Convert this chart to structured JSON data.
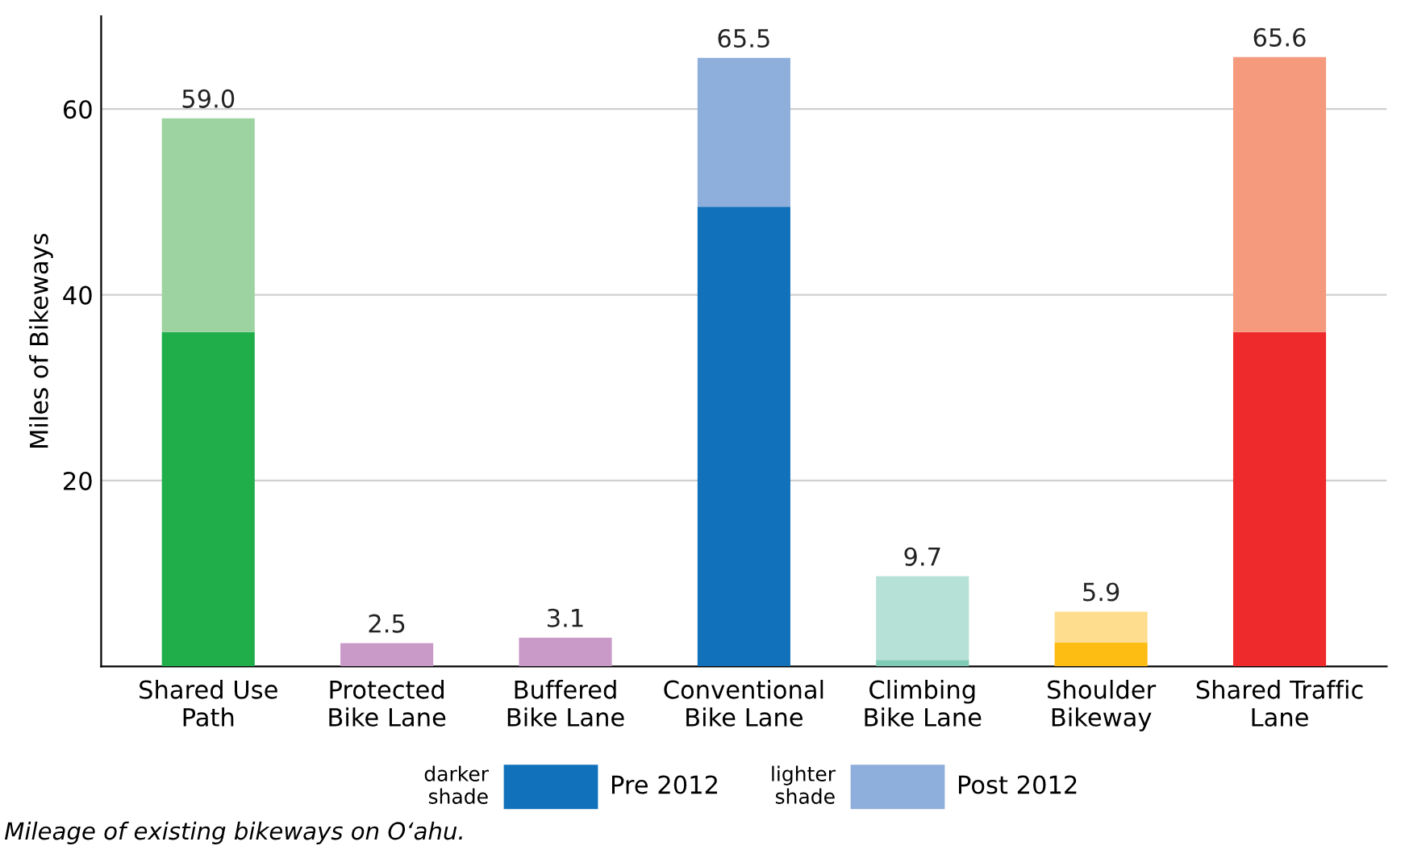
{
  "chart_data": {
    "type": "bar",
    "stacked": true,
    "ylabel": "Miles of Bikeways",
    "categories": [
      "Shared Use\nPath",
      "Protected\nBike Lane",
      "Buffered\nBike Lane",
      "Conventional\nBike Lane",
      "Climbing\nBike Lane",
      "Shoulder\nBikeway",
      "Shared Traffic\nLane"
    ],
    "series": [
      {
        "name": "Pre 2012",
        "color": "#1271bb",
        "values": [
          36.0,
          0,
          0,
          49.5,
          0.7,
          2.6,
          36.0
        ],
        "colors": [
          "#1fae4a",
          "#c99ac8",
          "#c99ac8",
          "#1271bb",
          "#7fcbb5",
          "#fdbd12",
          "#ee2a2c"
        ]
      },
      {
        "name": "Post 2012",
        "color": "#8eaedb",
        "values": [
          23.0,
          2.5,
          3.1,
          16.0,
          9.0,
          3.3,
          29.6
        ],
        "colors": [
          "#9dd3a0",
          "#c99ac8",
          "#c99ac8",
          "#8eaedb",
          "#b6e1d6",
          "#fedd8e",
          "#f59a7d"
        ]
      }
    ],
    "totals": [
      "59.0",
      "2.5",
      "3.1",
      "65.5",
      "9.7",
      "5.9",
      "65.6"
    ],
    "ylim": [
      0,
      70
    ],
    "yticks": [
      20,
      40,
      60
    ],
    "grid": "y",
    "legend": "bottom",
    "annotations": [
      "darker shade",
      "lighter shade",
      "Mileage of existing bikeways on O‘ahu."
    ]
  }
}
